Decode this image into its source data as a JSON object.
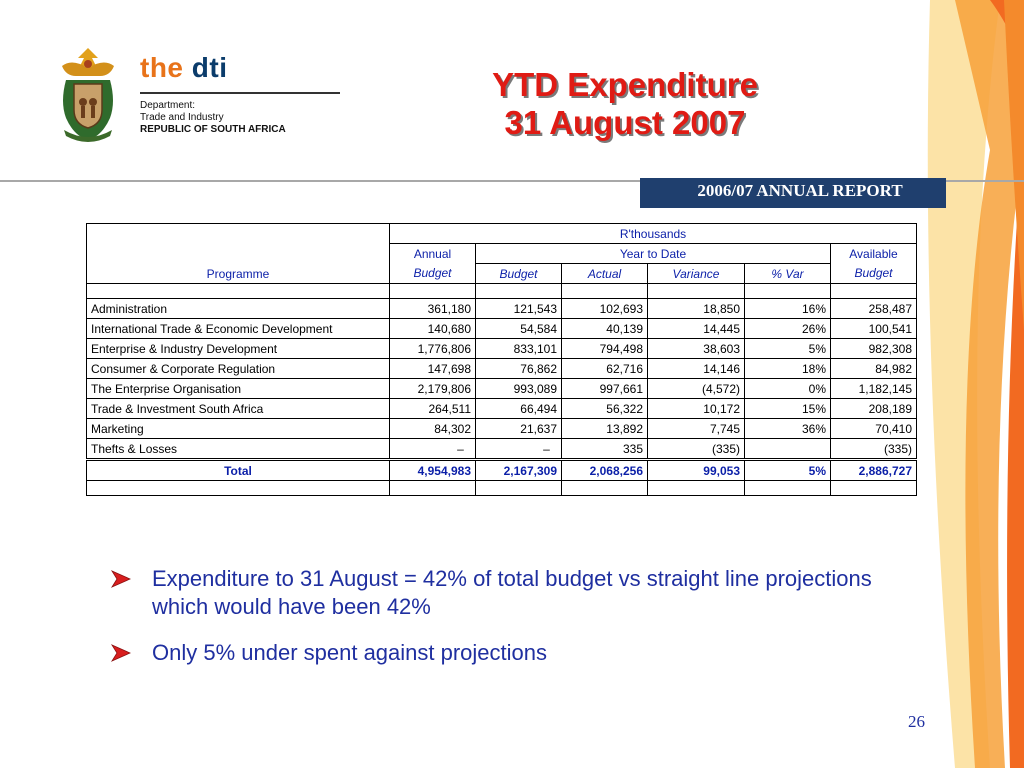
{
  "logo": {
    "brand_the": "the",
    "brand_dti": "dti",
    "dept_line1": "Department:",
    "dept_line2": "Trade and Industry",
    "dept_line3": "REPUBLIC OF SOUTH AFRICA"
  },
  "title": {
    "line1": "YTD Expenditure",
    "line2": "31 August 2007"
  },
  "report_tab": "2006/07 ANNUAL REPORT",
  "table": {
    "unit_header": "R'thousands",
    "programme_header": "Programme",
    "annual_top": "Annual",
    "annual_sub": "Budget",
    "ytd_header": "Year to Date",
    "available_top": "Available",
    "available_sub": "Budget",
    "ytd_cols": [
      "Budget",
      "Actual",
      "Variance",
      "% Var"
    ],
    "rows": [
      {
        "programme": "Administration",
        "annual": "361,180",
        "budget": "121,543",
        "actual": "102,693",
        "variance": "18,850",
        "pct": "16%",
        "available": "258,487"
      },
      {
        "programme": "International Trade & Economic Development",
        "annual": "140,680",
        "budget": "54,584",
        "actual": "40,139",
        "variance": "14,445",
        "pct": "26%",
        "available": "100,541"
      },
      {
        "programme": "Enterprise & Industry Development",
        "annual": "1,776,806",
        "budget": "833,101",
        "actual": "794,498",
        "variance": "38,603",
        "pct": "5%",
        "available": "982,308"
      },
      {
        "programme": "Consumer & Corporate Regulation",
        "annual": "147,698",
        "budget": "76,862",
        "actual": "62,716",
        "variance": "14,146",
        "pct": "18%",
        "available": "84,982"
      },
      {
        "programme": "The Enterprise Organisation",
        "annual": "2,179,806",
        "budget": "993,089",
        "actual": "997,661",
        "variance": "(4,572)",
        "pct": "0%",
        "available": "1,182,145"
      },
      {
        "programme": "Trade & Investment South Africa",
        "annual": "264,511",
        "budget": "66,494",
        "actual": "56,322",
        "variance": "10,172",
        "pct": "15%",
        "available": "208,189"
      },
      {
        "programme": "Marketing",
        "annual": "84,302",
        "budget": "21,637",
        "actual": "13,892",
        "variance": "7,745",
        "pct": "36%",
        "available": "70,410"
      },
      {
        "programme": "Thefts & Losses",
        "annual": "–",
        "budget": "–",
        "actual": "335",
        "variance": "(335)",
        "pct": "",
        "available": "(335)"
      }
    ],
    "total": {
      "label": "Total",
      "annual": "4,954,983",
      "budget": "2,167,309",
      "actual": "2,068,256",
      "variance": "99,053",
      "pct": "5%",
      "available": "2,886,727"
    }
  },
  "bullets": [
    "Expenditure to 31 August = 42% of total budget vs straight line projections which would have been 42%",
    "Only 5% under spent against projections"
  ],
  "page_number": "26",
  "colors": {
    "title": "#e01b14",
    "table_header": "#0b1fa8",
    "bullet_text": "#1f2fa0",
    "tab_background": "#1f3f6e",
    "accent_orange": "#f26a21"
  }
}
